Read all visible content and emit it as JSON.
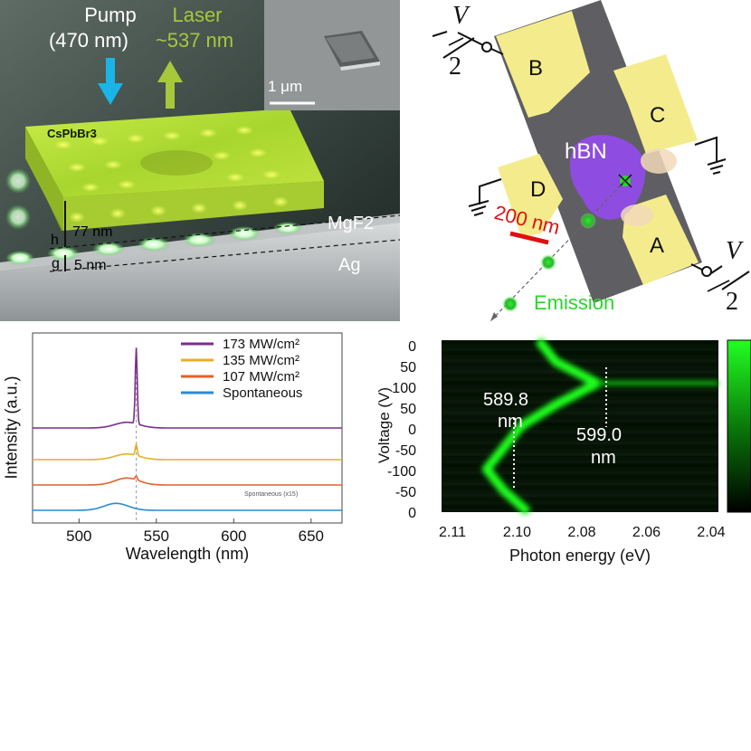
{
  "colors": {
    "laser_green": "#a6c83a",
    "pump_blue": "#19b5e6",
    "emission_green": "#2bd62b",
    "electrode_yellow": "#f4ec8c",
    "hbn_purple": "#8f4ce0",
    "scale_red": "#e01010",
    "series_173": "#7a2d8c",
    "series_135": "#e7ae2a",
    "series_107": "#e2622a",
    "series_spont": "#2a8ad6"
  },
  "panel_a": {
    "pump_label_line1": "Pump",
    "pump_label_line2": "(470 nm)",
    "laser_label_line1": "Laser",
    "laser_label_line2": "~537 nm",
    "inset_scale": "1 μm",
    "crystal_label": "CsPbBr3",
    "h_label": "h",
    "h_value": "77 nm",
    "g_label": "g",
    "g_value": "5 nm",
    "spacer_label": "MgF2",
    "substrate_label": "Ag",
    "icons": [
      "pump-arrow-icon",
      "laser-arrow-icon"
    ]
  },
  "panel_b": {
    "voltage_top": "V",
    "voltage_top_den": "2",
    "voltage_bottom": "V",
    "voltage_bottom_den": "2",
    "electrode_b": "B",
    "electrode_c": "C",
    "electrode_d": "D",
    "electrode_a": "A",
    "hbn_label": "hBN",
    "scale_label": "200 nm",
    "emission_label": "Emission",
    "icons": [
      "ground-icon",
      "ground-icon",
      "terminal-icon",
      "terminal-icon"
    ]
  },
  "chart_data": [
    {
      "type": "line",
      "xlabel": "Wavelength (nm)",
      "ylabel": "Intensity (a.u.)",
      "xlim": [
        470,
        670
      ],
      "xticks": [
        "500",
        "550",
        "600",
        "650"
      ],
      "reference_line_x": 537,
      "grid": false,
      "legend_placement": "top-right",
      "annotation": "Spontaneous (x15)",
      "series": [
        {
          "name": "173 MW/cm²",
          "offset": 3.0,
          "peak_x": 537,
          "peak_height": 2.4,
          "bump_height": 0.18
        },
        {
          "name": "135 MW/cm²",
          "offset": 2.0,
          "peak_x": 537,
          "peak_height": 0.35,
          "bump_height": 0.18
        },
        {
          "name": "107 MW/cm²",
          "offset": 1.2,
          "peak_x": 537,
          "peak_height": 0.12,
          "bump_height": 0.22
        },
        {
          "name": "Spontaneous",
          "offset": 0.4,
          "peak_x": 530,
          "peak_height": 0.0,
          "bump_height": 0.22
        }
      ],
      "x": [
        470,
        480,
        490,
        500,
        510,
        520,
        525,
        530,
        534,
        536,
        537,
        538,
        540,
        545,
        550,
        560,
        580,
        600,
        620,
        640,
        660,
        670
      ]
    },
    {
      "type": "heatmap",
      "xlabel": "Photon energy (eV)",
      "ylabel": "Voltage (V)",
      "xticks": [
        "2.11",
        "2.10",
        "2.08",
        "2.06",
        "2.04"
      ],
      "yticks": [
        "0",
        "50",
        "100",
        "50",
        "0",
        "-50",
        "-100",
        "-50",
        "0"
      ],
      "annotations": [
        {
          "line1": "589.8",
          "line2": "nm"
        },
        {
          "line1": "599.0",
          "line2": "nm"
        }
      ],
      "ridge_energy_at_voltage": {
        "voltage_sweep": [
          0,
          50,
          100,
          50,
          0,
          -50,
          -100,
          -50,
          0
        ],
        "energy_eV": [
          2.087,
          2.082,
          2.07,
          2.082,
          2.092,
          2.097,
          2.102,
          2.097,
          2.09
        ]
      }
    }
  ]
}
